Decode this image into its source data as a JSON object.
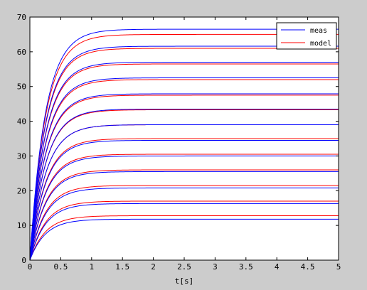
{
  "window": {
    "background": "#cccccc"
  },
  "chart_data": {
    "type": "line",
    "title": "",
    "xlabel": "t[s]",
    "ylabel": "",
    "xlim": [
      0,
      5
    ],
    "ylim": [
      0,
      70
    ],
    "xticks": [
      0,
      0.5,
      1,
      1.5,
      2,
      2.5,
      3,
      3.5,
      4,
      4.5,
      5
    ],
    "xtick_labels": [
      "0",
      "0.5",
      "1",
      "1.5",
      "2",
      "2.5",
      "3",
      "3.5",
      "4",
      "4.5",
      "5"
    ],
    "yticks": [
      0,
      10,
      20,
      30,
      40,
      50,
      60,
      70
    ],
    "ytick_labels": [
      "0",
      "10",
      "20",
      "30",
      "40",
      "50",
      "60",
      "70"
    ],
    "grid": false,
    "legend": {
      "placement": "top-right",
      "entries": [
        {
          "label": "meas",
          "color": "#0000ff"
        },
        {
          "label": "model",
          "color": "#ff0000"
        }
      ]
    },
    "response_shape": "first-order step response, time constant about 0.25 s",
    "series": [
      {
        "name": "meas",
        "color": "#0000ff",
        "steady_state": [
          11.8,
          16.3,
          20.8,
          25.5,
          30.0,
          34.5,
          39.0,
          43.5,
          47.9,
          52.5,
          57.0,
          61.6,
          66.5
        ]
      },
      {
        "name": "model",
        "color": "#ff0000",
        "steady_state": [
          12.8,
          17.0,
          21.5,
          26.0,
          30.5,
          35.0,
          39.0,
          43.3,
          47.5,
          52.0,
          56.5,
          61.0,
          65.0
        ]
      }
    ]
  }
}
